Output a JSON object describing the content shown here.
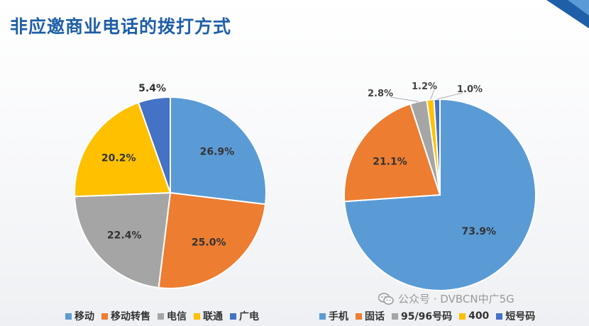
{
  "title": "非应邀商业电话的拨打方式",
  "watermark": "公众号 · DVBCN中广5G",
  "chart_data": [
    {
      "type": "pie",
      "categories": [
        "移动",
        "移动转售",
        "电信",
        "联通",
        "广电"
      ],
      "values": [
        26.9,
        25.0,
        22.4,
        20.2,
        5.4
      ],
      "labels": [
        "26.9%",
        "25.0%",
        "22.4%",
        "20.2%",
        "5.4%"
      ],
      "colors": [
        "#5b9bd5",
        "#ed7d31",
        "#a5a5a5",
        "#ffc000",
        "#4472c4"
      ],
      "legend": "bottom"
    },
    {
      "type": "pie",
      "categories": [
        "手机",
        "固话",
        "95/96号码",
        "400",
        "短号码"
      ],
      "values": [
        73.9,
        21.1,
        2.8,
        1.2,
        1.0
      ],
      "labels": [
        "73.9%",
        "21.1%",
        "2.8%",
        "1.2%",
        "1.0%"
      ],
      "colors": [
        "#5b9bd5",
        "#ed7d31",
        "#a5a5a5",
        "#ffc000",
        "#4472c4"
      ],
      "legend": "bottom"
    }
  ]
}
